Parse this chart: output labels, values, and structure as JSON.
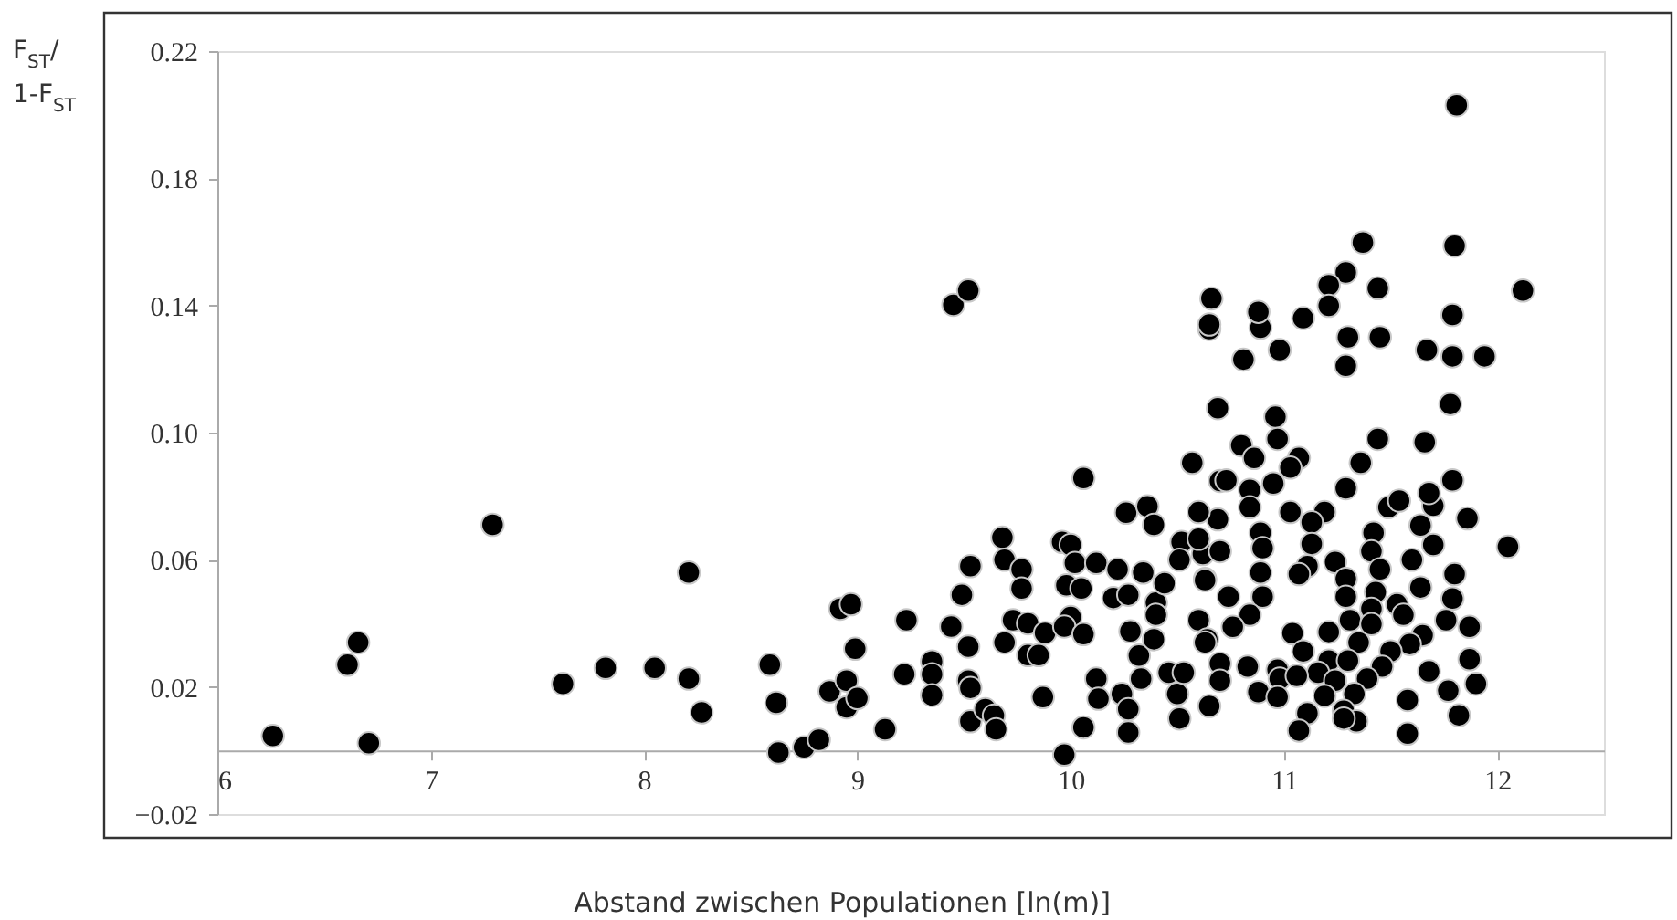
{
  "chart_data": {
    "type": "scatter",
    "xlabel": "Abstand zwischen Populationen [ln(m)]",
    "ylabel": "F$_{ST}$/ 1-F$_{ST}$",
    "xlim": [
      6,
      12.5
    ],
    "xticks": [
      6,
      7,
      8,
      9,
      10,
      11,
      12
    ],
    "ylim": [
      -0.02,
      0.22
    ],
    "yticks": [
      -0.02,
      0.02,
      0.06,
      {
        "value": 0.1,
        "label": "0.10"
      },
      0.14,
      0.18,
      0.22
    ],
    "grid": false,
    "marker": "circle",
    "series": [
      {
        "color": "#000000",
        "x": [
          6.26,
          6.61,
          6.66,
          6.71,
          7.29,
          7.62,
          7.82,
          8.05,
          8.21,
          8.21,
          8.27,
          8.59,
          8.62,
          8.63,
          8.75,
          8.82,
          8.87,
          8.95,
          8.95,
          9.0,
          8.99,
          8.92,
          8.97,
          9.13,
          9.23,
          9.22,
          9.35,
          9.35,
          9.35,
          9.44,
          9.49,
          9.53,
          9.52,
          9.52,
          9.53,
          9.53,
          9.6,
          9.64,
          9.65,
          9.68,
          9.69,
          9.69,
          9.73,
          9.77,
          9.77,
          9.8,
          9.8,
          9.85,
          9.87,
          9.88,
          9.97,
          9.96,
          10.0,
          10.02,
          9.98,
          10.0,
          9.97,
          10.05,
          10.06,
          10.06,
          10.06,
          10.12,
          10.12,
          10.13,
          10.22,
          10.2,
          10.26,
          10.27,
          10.28,
          10.24,
          10.27,
          10.27,
          10.32,
          10.33,
          10.34,
          10.36,
          10.39,
          10.4,
          10.4,
          10.39,
          10.44,
          10.46,
          10.5,
          10.52,
          10.51,
          10.51,
          10.53,
          10.6,
          10.57,
          10.63,
          10.62,
          10.65,
          10.64,
          10.69,
          10.7,
          10.65,
          10.89,
          11.3,
          11.45,
          10.81,
          10.98,
          11.29,
          11.67,
          11.79,
          11.94,
          11.78,
          10.96,
          10.8,
          10.97,
          10.86,
          11.07,
          11.03,
          10.73,
          10.84,
          10.95,
          11.44,
          11.66,
          11.36,
          11.29,
          11.79,
          10.84,
          11.49,
          11.54,
          11.7,
          11.68,
          11.03,
          11.19,
          11.86,
          11.13,
          11.64,
          10.69,
          10.6,
          11.42,
          10.89,
          11.13,
          11.7,
          10.9,
          10.7,
          10.6,
          12.05,
          11.6,
          11.24,
          11.41,
          11.11,
          11.45,
          11.07,
          11.8,
          11.29,
          10.89,
          10.63,
          11.64,
          11.43,
          10.9,
          11.29,
          11.79,
          10.74,
          11.53,
          11.56,
          11.76,
          11.41,
          11.31,
          10.84,
          10.76,
          11.21,
          11.41,
          11.04,
          11.87,
          11.65,
          11.35,
          11.59,
          11.09,
          11.5,
          10.63,
          11.21,
          11.3,
          11.87,
          10.7,
          10.83,
          10.97,
          11.16,
          11.46,
          11.68,
          11.39,
          10.7,
          10.98,
          11.9,
          11.24,
          11.06,
          10.88,
          10.97,
          11.19,
          11.33,
          11.77,
          11.58,
          11.11,
          11.28,
          11.34,
          11.28,
          11.82,
          11.07,
          11.58,
          11.81,
          11.8,
          11.37,
          11.29,
          11.21,
          11.44,
          11.21,
          12.12,
          11.79,
          11.09,
          10.66,
          10.65,
          10.88,
          9.45,
          9.52
        ],
        "values": [
          0.0046,
          0.027,
          0.034,
          0.0023,
          0.071,
          0.021,
          0.026,
          0.026,
          0.056,
          0.0226,
          0.012,
          0.027,
          0.015,
          -0.0006,
          0.001,
          0.0034,
          0.0186,
          0.022,
          0.0136,
          0.0165,
          0.032,
          0.0446,
          0.046,
          0.0067,
          0.041,
          0.024,
          0.028,
          0.024,
          0.0174,
          0.039,
          0.049,
          0.058,
          0.0327,
          0.022,
          0.0197,
          0.0092,
          0.013,
          0.011,
          0.0067,
          0.067,
          0.06,
          0.034,
          0.041,
          0.057,
          0.051,
          0.04,
          0.03,
          0.03,
          0.0168,
          0.037,
          -0.0013,
          0.0656,
          0.0647,
          0.059,
          0.052,
          0.042,
          0.039,
          0.051,
          0.0366,
          0.0857,
          0.0073,
          0.059,
          0.0226,
          0.0163,
          0.057,
          0.048,
          0.0748,
          0.049,
          0.0375,
          0.0178,
          0.013,
          0.0057,
          0.0299,
          0.0226,
          0.056,
          0.0768,
          0.071,
          0.0465,
          0.0427,
          0.035,
          0.0526,
          0.0245,
          0.0178,
          0.0656,
          0.06,
          0.0101,
          0.0245,
          0.041,
          0.0905,
          0.054,
          0.0618,
          0.014,
          0.035,
          0.1077,
          0.0848,
          0.1326,
          0.133,
          0.13,
          0.13,
          0.123,
          0.126,
          0.121,
          0.126,
          0.124,
          0.124,
          0.109,
          0.105,
          0.096,
          0.098,
          0.092,
          0.092,
          0.089,
          0.085,
          0.082,
          0.084,
          0.098,
          0.097,
          0.0905,
          0.0825,
          0.085,
          0.0765,
          0.0765,
          0.0786,
          0.077,
          0.081,
          0.075,
          0.075,
          0.073,
          0.0718,
          0.0708,
          0.0727,
          0.075,
          0.0685,
          0.0685,
          0.065,
          0.0647,
          0.0637,
          0.0627,
          0.0666,
          0.0641,
          0.06,
          0.0593,
          0.0627,
          0.058,
          0.057,
          0.0555,
          0.0555,
          0.054,
          0.056,
          0.0536,
          0.0513,
          0.0498,
          0.0484,
          0.0484,
          0.0478,
          0.0484,
          0.046,
          0.0427,
          0.041,
          0.0446,
          0.041,
          0.0427,
          0.0389,
          0.0373,
          0.0398,
          0.0369,
          0.0389,
          0.0363,
          0.034,
          0.0335,
          0.0312,
          0.0312,
          0.034,
          0.0283,
          0.0283,
          0.0287,
          0.0274,
          0.0264,
          0.0254,
          0.0245,
          0.0264,
          0.0249,
          0.0226,
          0.022,
          0.0226,
          0.021,
          0.022,
          0.0235,
          0.0184,
          0.0168,
          0.0172,
          0.0178,
          0.0188,
          0.0159,
          0.0117,
          0.0125,
          0.0092,
          0.0101,
          0.0111,
          0.0063,
          0.0053,
          0.203,
          0.1588,
          0.1598,
          0.1504,
          0.1464,
          0.1454,
          0.1399,
          0.1447,
          0.137,
          0.136,
          0.1422,
          0.134,
          0.138,
          0.1402,
          0.1447
        ]
      }
    ]
  }
}
